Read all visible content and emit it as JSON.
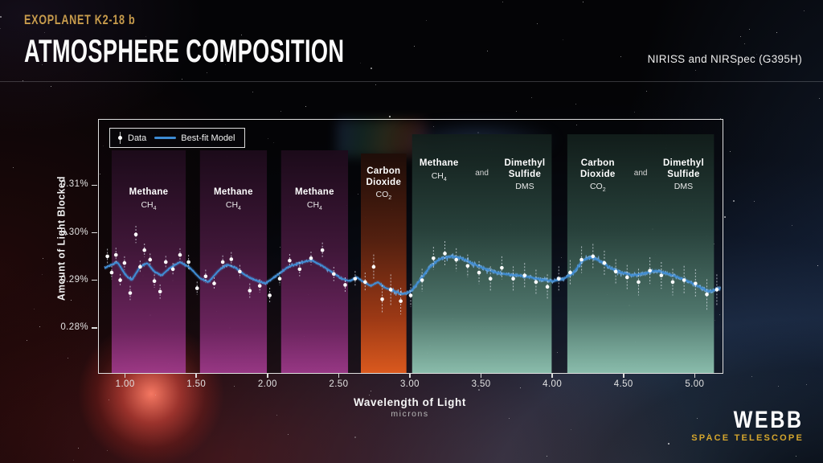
{
  "header": {
    "eyebrow": "EXOPLANET K2-18 b",
    "title": "ATMOSPHERE COMPOSITION",
    "instrument": "NIRISS and NIRSpec (G395H)"
  },
  "legend": {
    "data_label": "Data",
    "model_label": "Best-fit Model"
  },
  "axes": {
    "y_title": "Amount of Light Blocked",
    "x_title": "Wavelength of Light",
    "x_subtitle": "microns",
    "y_ticks": [
      "0.31%",
      "0.30%",
      "0.29%",
      "0.28%"
    ],
    "x_ticks": [
      "1.00",
      "1.50",
      "2.00",
      "2.50",
      "3.00",
      "3.50",
      "4.00",
      "4.50",
      "5.00"
    ]
  },
  "logo": {
    "name": "WEBB",
    "subtitle": "SPACE TELESCOPE"
  },
  "colors": {
    "accent_gold": "#c89c4c",
    "logo_gold": "#d5a62d",
    "model_line": "#3d8bd4",
    "observed_line": "#7ab5ef",
    "data_point": "#ffffff",
    "error_bar": "rgba(230,235,245,0.7)",
    "band_gradients": {
      "purple": [
        [
          "0%",
          "#1d0b1b"
        ],
        [
          "45%",
          "#44183c"
        ],
        [
          "80%",
          "#712663"
        ],
        [
          "100%",
          "#a03a8c"
        ]
      ],
      "orange": [
        [
          "0%",
          "#1f0d08"
        ],
        [
          "40%",
          "#5a2210"
        ],
        [
          "75%",
          "#a63c15"
        ],
        [
          "100%",
          "#e85e1e"
        ]
      ],
      "teal": [
        [
          "0%",
          "#121e1b"
        ],
        [
          "40%",
          "#2a453e"
        ],
        [
          "75%",
          "#547d71"
        ],
        [
          "100%",
          "#92c8b5"
        ]
      ]
    }
  },
  "chart_data": {
    "type": "line",
    "title": "Atmosphere Composition of Exoplanet K2-18 b",
    "xlabel": "Wavelength of Light (microns)",
    "ylabel": "Amount of Light Blocked (%)",
    "xlim": [
      0.81,
      5.19
    ],
    "ylim": [
      0.2707,
      0.3239
    ],
    "x_tick_values": [
      1.0,
      1.5,
      2.0,
      2.5,
      3.0,
      3.5,
      4.0,
      4.5,
      5.0
    ],
    "y_tick_values": [
      0.31,
      0.3,
      0.29,
      0.28
    ],
    "grid": false,
    "legend_position": "top-left",
    "bands": [
      {
        "range": [
          0.9,
          1.42
        ],
        "color": "purple",
        "title": "Methane",
        "formula": "CH4"
      },
      {
        "range": [
          1.52,
          1.99
        ],
        "color": "purple",
        "title": "Methane",
        "formula": "CH4"
      },
      {
        "range": [
          2.09,
          2.56
        ],
        "color": "purple",
        "title": "Methane",
        "formula": "CH4"
      },
      {
        "range": [
          2.65,
          2.97
        ],
        "color": "orange",
        "title": "Carbon Dioxide",
        "formula": "CO2"
      },
      {
        "range": [
          3.01,
          3.99
        ],
        "color": "teal",
        "conjunction": "and",
        "dual": [
          {
            "title": "Methane",
            "formula": "CH4"
          },
          {
            "title": "Dimethyl Sulfide",
            "formula": "DMS"
          }
        ]
      },
      {
        "range": [
          4.1,
          5.13
        ],
        "color": "teal",
        "conjunction": "and",
        "dual": [
          {
            "title": "Carbon Dioxide",
            "formula": "CO2"
          },
          {
            "title": "Dimethyl Sulfide",
            "formula": "DMS"
          }
        ]
      }
    ],
    "series": [
      {
        "name": "Data",
        "type": "scatter_errorbar",
        "points": [
          [
            0.87,
            0.2952,
            0.0016
          ],
          [
            0.9,
            0.2918,
            0.0014
          ],
          [
            0.93,
            0.2955,
            0.0015
          ],
          [
            0.96,
            0.2902,
            0.0013
          ],
          [
            0.99,
            0.2938,
            0.0014
          ],
          [
            1.03,
            0.2875,
            0.0015
          ],
          [
            1.07,
            0.2998,
            0.0018
          ],
          [
            1.1,
            0.293,
            0.0013
          ],
          [
            1.13,
            0.2965,
            0.0014
          ],
          [
            1.17,
            0.2945,
            0.0013
          ],
          [
            1.2,
            0.29,
            0.0014
          ],
          [
            1.24,
            0.2878,
            0.0015
          ],
          [
            1.28,
            0.294,
            0.0013
          ],
          [
            1.33,
            0.2925,
            0.0013
          ],
          [
            1.38,
            0.2955,
            0.0014
          ],
          [
            1.44,
            0.294,
            0.0015
          ],
          [
            1.5,
            0.2885,
            0.0014
          ],
          [
            1.56,
            0.291,
            0.0014
          ],
          [
            1.62,
            0.2895,
            0.0013
          ],
          [
            1.68,
            0.294,
            0.0014
          ],
          [
            1.74,
            0.2946,
            0.0015
          ],
          [
            1.8,
            0.292,
            0.0014
          ],
          [
            1.87,
            0.288,
            0.0015
          ],
          [
            1.94,
            0.289,
            0.0014
          ],
          [
            2.01,
            0.287,
            0.0016
          ],
          [
            2.08,
            0.2905,
            0.0014
          ],
          [
            2.15,
            0.2943,
            0.0014
          ],
          [
            2.22,
            0.2925,
            0.0015
          ],
          [
            2.3,
            0.2948,
            0.0014
          ],
          [
            2.38,
            0.2965,
            0.0016
          ],
          [
            2.46,
            0.2915,
            0.0015
          ],
          [
            2.54,
            0.2892,
            0.0016
          ],
          [
            2.61,
            0.2905,
            0.0016
          ],
          [
            2.68,
            0.2898,
            0.002
          ],
          [
            2.74,
            0.293,
            0.0026
          ],
          [
            2.8,
            0.2862,
            0.003
          ],
          [
            2.86,
            0.2882,
            0.0032
          ],
          [
            2.93,
            0.2858,
            0.0028
          ],
          [
            3.0,
            0.287,
            0.0024
          ],
          [
            3.08,
            0.2902,
            0.0024
          ],
          [
            3.16,
            0.2948,
            0.0024
          ],
          [
            3.24,
            0.2958,
            0.0026
          ],
          [
            3.32,
            0.2945,
            0.0024
          ],
          [
            3.4,
            0.2932,
            0.0024
          ],
          [
            3.48,
            0.2918,
            0.0024
          ],
          [
            3.56,
            0.2905,
            0.0026
          ],
          [
            3.64,
            0.2928,
            0.0024
          ],
          [
            3.72,
            0.2905,
            0.0026
          ],
          [
            3.8,
            0.2912,
            0.0026
          ],
          [
            3.88,
            0.2898,
            0.0026
          ],
          [
            3.96,
            0.2888,
            0.0026
          ],
          [
            4.04,
            0.2905,
            0.0026
          ],
          [
            4.12,
            0.2918,
            0.0026
          ],
          [
            4.2,
            0.2945,
            0.0028
          ],
          [
            4.28,
            0.2952,
            0.0026
          ],
          [
            4.36,
            0.2938,
            0.0026
          ],
          [
            4.44,
            0.292,
            0.0026
          ],
          [
            4.52,
            0.2908,
            0.0026
          ],
          [
            4.6,
            0.2898,
            0.0028
          ],
          [
            4.68,
            0.2922,
            0.0028
          ],
          [
            4.76,
            0.2912,
            0.0028
          ],
          [
            4.84,
            0.2898,
            0.0028
          ],
          [
            4.92,
            0.2902,
            0.003
          ],
          [
            5.0,
            0.2895,
            0.003
          ],
          [
            5.08,
            0.2872,
            0.0032
          ],
          [
            5.15,
            0.2882,
            0.0032
          ]
        ]
      },
      {
        "name": "Best-fit Model",
        "type": "line",
        "points": [
          [
            0.82,
            0.2922
          ],
          [
            0.88,
            0.2932
          ],
          [
            0.94,
            0.294
          ],
          [
            1.0,
            0.2912
          ],
          [
            1.04,
            0.2902
          ],
          [
            1.1,
            0.293
          ],
          [
            1.15,
            0.2938
          ],
          [
            1.2,
            0.292
          ],
          [
            1.25,
            0.2912
          ],
          [
            1.31,
            0.2928
          ],
          [
            1.38,
            0.294
          ],
          [
            1.45,
            0.2928
          ],
          [
            1.52,
            0.2906
          ],
          [
            1.58,
            0.2898
          ],
          [
            1.65,
            0.2922
          ],
          [
            1.71,
            0.2935
          ],
          [
            1.77,
            0.2928
          ],
          [
            1.84,
            0.2912
          ],
          [
            1.91,
            0.2902
          ],
          [
            1.98,
            0.2895
          ],
          [
            2.06,
            0.2912
          ],
          [
            2.14,
            0.293
          ],
          [
            2.22,
            0.2938
          ],
          [
            2.3,
            0.2944
          ],
          [
            2.37,
            0.2934
          ],
          [
            2.44,
            0.292
          ],
          [
            2.51,
            0.2906
          ],
          [
            2.57,
            0.29
          ],
          [
            2.62,
            0.2908
          ],
          [
            2.67,
            0.2898
          ],
          [
            2.72,
            0.289
          ],
          [
            2.77,
            0.2898
          ],
          [
            2.82,
            0.2886
          ],
          [
            2.88,
            0.288
          ],
          [
            2.94,
            0.2872
          ],
          [
            3.0,
            0.2878
          ],
          [
            3.06,
            0.29
          ],
          [
            3.13,
            0.2928
          ],
          [
            3.2,
            0.2946
          ],
          [
            3.28,
            0.2952
          ],
          [
            3.36,
            0.2948
          ],
          [
            3.44,
            0.2936
          ],
          [
            3.52,
            0.2926
          ],
          [
            3.6,
            0.2918
          ],
          [
            3.68,
            0.2914
          ],
          [
            3.76,
            0.2912
          ],
          [
            3.84,
            0.2908
          ],
          [
            3.92,
            0.2903
          ],
          [
            4.0,
            0.29
          ],
          [
            4.07,
            0.2904
          ],
          [
            4.14,
            0.2916
          ],
          [
            4.21,
            0.2944
          ],
          [
            4.27,
            0.295
          ],
          [
            4.33,
            0.2942
          ],
          [
            4.4,
            0.2928
          ],
          [
            4.48,
            0.2918
          ],
          [
            4.56,
            0.2912
          ],
          [
            4.64,
            0.2916
          ],
          [
            4.72,
            0.2922
          ],
          [
            4.8,
            0.2916
          ],
          [
            4.88,
            0.2908
          ],
          [
            4.96,
            0.2898
          ],
          [
            5.04,
            0.2886
          ],
          [
            5.1,
            0.2878
          ],
          [
            5.16,
            0.2884
          ]
        ]
      }
    ]
  }
}
